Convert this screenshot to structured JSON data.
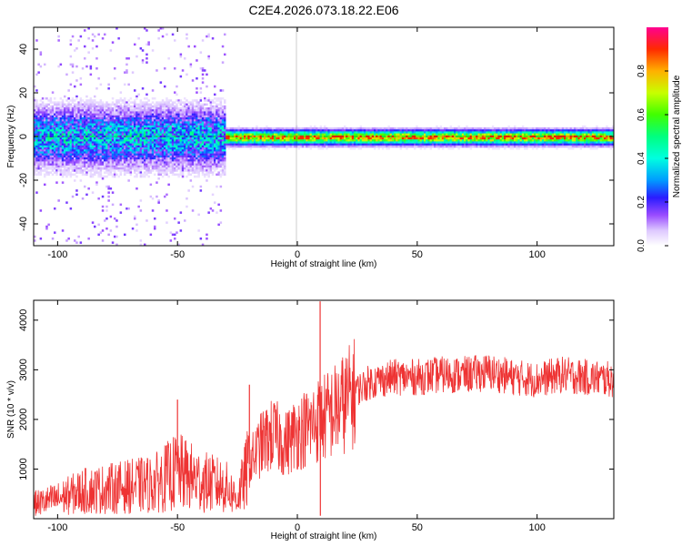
{
  "title": "C2E4.2026.073.18.22.E06",
  "chart_data": [
    {
      "type": "heatmap",
      "xlabel": "Height of straight line (km)",
      "ylabel": "Frequency (Hz)",
      "xlim": [
        -110,
        132
      ],
      "ylim": [
        -50,
        50
      ],
      "xticks": [
        -100,
        -50,
        0,
        50,
        100
      ],
      "xtick_labels": [
        "-100",
        "-50",
        "0",
        "50",
        "100"
      ],
      "yticks": [
        -40,
        -20,
        0,
        20,
        40
      ],
      "ytick_labels": [
        "-40",
        "-20",
        "0",
        "20",
        "40"
      ],
      "colorbar": {
        "label": "Normalized spectral amplitude",
        "range": [
          0,
          1
        ],
        "ticks": [
          0,
          0.2,
          0.4,
          0.6,
          0.8
        ],
        "tick_labels": [
          "0.0",
          "0.2",
          "0.4",
          "0.6",
          "0.8"
        ]
      },
      "ridge": {
        "center_frequency_hz": 0,
        "segments": [
          {
            "x": [
              -110,
              -30
            ],
            "amplitude": 0.35,
            "spread_hz": 8
          },
          {
            "x": [
              -30,
              132
            ],
            "amplitude": 0.75,
            "spread_hz": 2
          }
        ],
        "noise_region_x": [
          -110,
          -30
        ]
      }
    },
    {
      "type": "line",
      "xlabel": "Height of straight line (km)",
      "ylabel": "SNR (10 * v/v)",
      "xlim": [
        -110,
        132
      ],
      "ylim": [
        0,
        4400
      ],
      "xticks": [
        -100,
        -50,
        0,
        50,
        100
      ],
      "xtick_labels": [
        "-100",
        "-50",
        "0",
        "50",
        "100"
      ],
      "yticks": [
        1000,
        2000,
        3000,
        4000
      ],
      "ytick_labels": [
        "1000",
        "2000",
        "3000",
        "4000"
      ],
      "series": [
        {
          "color": "#ee3333",
          "x": [
            -110,
            -100,
            -90,
            -80,
            -70,
            -60,
            -50,
            -40,
            -30,
            -25,
            -20,
            -15,
            -10,
            -5,
            0,
            5,
            9,
            10,
            15,
            20,
            25,
            30,
            40,
            50,
            60,
            70,
            80,
            90,
            100,
            110,
            120,
            132
          ],
          "y": [
            300,
            400,
            550,
            600,
            650,
            700,
            950,
            750,
            650,
            400,
            1100,
            1500,
            1700,
            1500,
            1750,
            1850,
            2000,
            2000,
            2150,
            2350,
            2600,
            2750,
            2850,
            2850,
            2900,
            2900,
            2950,
            2850,
            2800,
            2900,
            2850,
            2800
          ],
          "spikes": [
            {
              "x": 9.5,
              "y": 4380
            },
            {
              "x": 9.6,
              "y": 60
            },
            {
              "x": -50,
              "y": 2400
            },
            {
              "x": -20,
              "y": 2700
            }
          ]
        }
      ]
    }
  ]
}
